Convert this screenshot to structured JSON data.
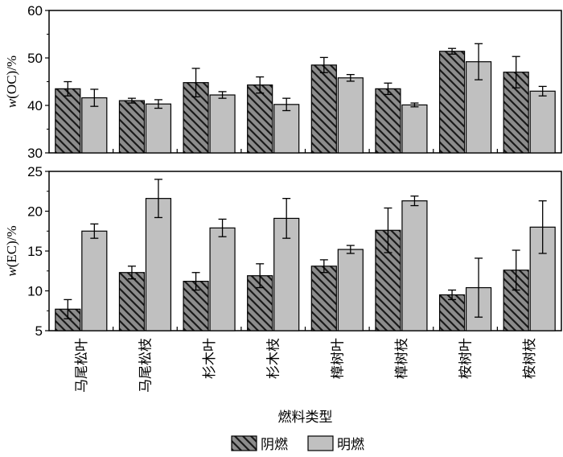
{
  "chart_data": {
    "type": "bar",
    "categories": [
      "马尾松叶",
      "马尾松枝",
      "杉木叶",
      "杉木枝",
      "樟树叶",
      "樟树枝",
      "桉树叶",
      "桉树枝"
    ],
    "xlabel": "燃料类型",
    "legend": {
      "placement": "bottom",
      "entries": [
        "阴燃",
        "明燃"
      ]
    },
    "series_colors": {
      "阴燃": "#8c8c8c",
      "明燃": "#c0c0c0"
    },
    "panels": [
      {
        "ylabel_var": "w",
        "ylabel_rest": "(OC)/%",
        "ylim": [
          30,
          60
        ],
        "yticks": [
          30,
          40,
          50,
          60
        ],
        "series": [
          {
            "name": "阴燃",
            "pattern": "hatched",
            "values": [
              43.5,
              41.0,
              44.8,
              44.3,
              48.5,
              43.5,
              51.4,
              47.0
            ],
            "errors": [
              1.5,
              0.5,
              3.0,
              1.7,
              1.6,
              1.2,
              0.6,
              3.3
            ]
          },
          {
            "name": "明燃",
            "pattern": "solid",
            "values": [
              41.6,
              40.3,
              42.2,
              40.2,
              45.8,
              40.1,
              49.2,
              43.0
            ],
            "errors": [
              1.8,
              0.9,
              0.7,
              1.3,
              0.7,
              0.4,
              3.8,
              1.0
            ]
          }
        ]
      },
      {
        "ylabel_var": "w",
        "ylabel_rest": "(EC)/%",
        "ylim": [
          5,
          25
        ],
        "yticks": [
          5,
          10,
          15,
          20,
          25
        ],
        "series": [
          {
            "name": "阴燃",
            "pattern": "hatched",
            "values": [
              7.7,
              12.3,
              11.2,
              11.9,
              13.1,
              17.6,
              9.5,
              12.6
            ],
            "errors": [
              1.2,
              0.8,
              1.1,
              1.5,
              0.8,
              2.8,
              0.6,
              2.5
            ]
          },
          {
            "name": "明燃",
            "pattern": "solid",
            "values": [
              17.5,
              21.6,
              17.9,
              19.1,
              15.2,
              21.3,
              10.4,
              18.0
            ],
            "errors": [
              0.9,
              2.4,
              1.1,
              2.5,
              0.5,
              0.6,
              3.7,
              3.3
            ]
          }
        ]
      }
    ]
  }
}
